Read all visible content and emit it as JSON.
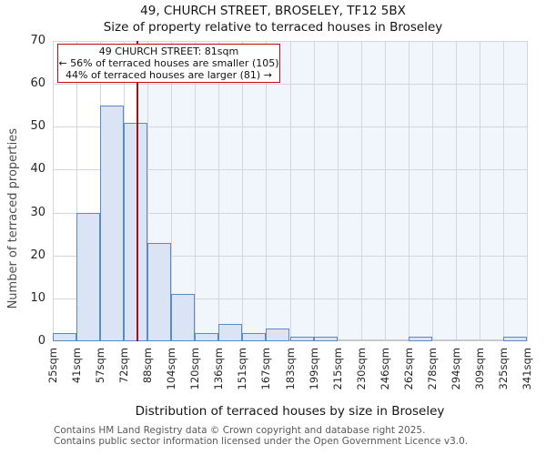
{
  "title": "49, CHURCH STREET, BROSELEY, TF12 5BX",
  "subtitle": "Size of property relative to terraced houses in Broseley",
  "annotation": {
    "line1": "49 CHURCH STREET: 81sqm",
    "line2": "← 56% of terraced houses are smaller (105)",
    "line3": "44% of terraced houses are larger (81) →"
  },
  "footer": {
    "line1": "Contains HM Land Registry data © Crown copyright and database right 2025.",
    "line2": "Contains public sector information licensed under the Open Government Licence v3.0."
  },
  "chart_data": {
    "type": "bar",
    "title": "49, CHURCH STREET, BROSELEY, TF12 5BX",
    "subtitle": "Size of property relative to terraced houses in Broseley",
    "xlabel": "Distribution of terraced houses by size in Broseley",
    "ylabel": "Number of terraced properties",
    "x_tick_labels": [
      "25sqm",
      "41sqm",
      "57sqm",
      "72sqm",
      "88sqm",
      "104sqm",
      "120sqm",
      "136sqm",
      "151sqm",
      "167sqm",
      "183sqm",
      "199sqm",
      "215sqm",
      "230sqm",
      "246sqm",
      "262sqm",
      "278sqm",
      "294sqm",
      "309sqm",
      "325sqm",
      "341sqm"
    ],
    "bin_edges": [
      25,
      41,
      57,
      72,
      88,
      104,
      120,
      136,
      151,
      167,
      183,
      199,
      215,
      230,
      246,
      262,
      278,
      294,
      309,
      325,
      341
    ],
    "values": [
      2,
      30,
      55,
      51,
      23,
      11,
      2,
      4,
      2,
      3,
      1,
      1,
      0,
      0,
      0,
      1,
      0,
      0,
      0,
      1
    ],
    "ylim": [
      0,
      70
    ],
    "yticks": [
      0,
      10,
      20,
      30,
      40,
      50,
      60,
      70
    ],
    "grid": true,
    "legend": "none",
    "marker": {
      "value": 81,
      "label": "49 CHURCH STREET: 81sqm"
    },
    "colors": {
      "bar_fill": "#dbe4f4",
      "bar_border": "#5d89c4",
      "marker_line": "#a50f15",
      "annotation_border": "#bf0a0f",
      "shade_region": "#f1f5fc",
      "gridline": "#d5d6dc",
      "axis_line": "#c8c9cf",
      "footer_text": "#595959"
    }
  }
}
